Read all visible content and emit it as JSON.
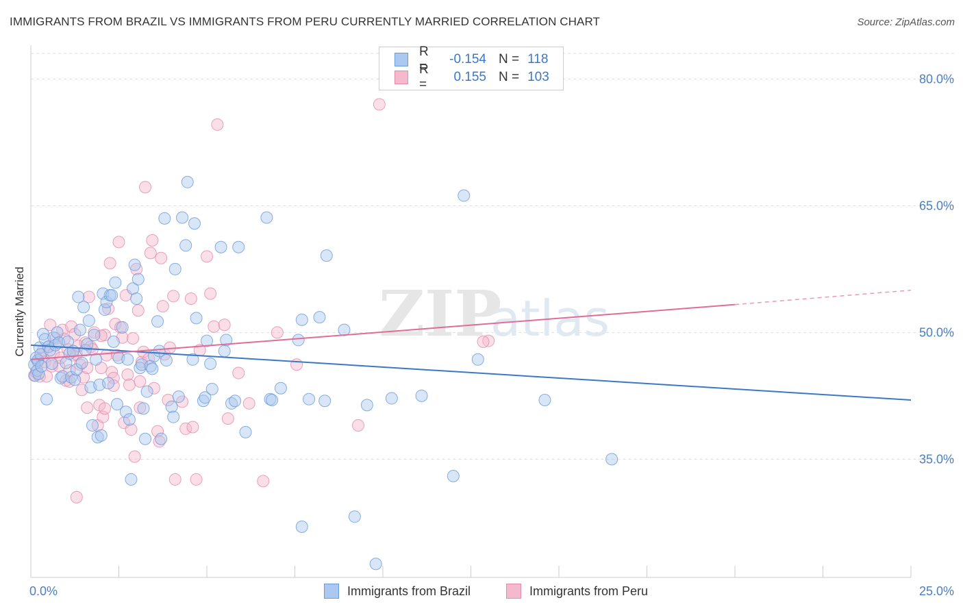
{
  "title": "IMMIGRANTS FROM BRAZIL VS IMMIGRANTS FROM PERU CURRENTLY MARRIED CORRELATION CHART",
  "source": "Source: ZipAtlas.com",
  "watermark": {
    "zip": "ZIP",
    "atlas": "atlas"
  },
  "legend_top": {
    "rows": [
      {
        "swatch_color": "#aac8f0",
        "r_label": "R =",
        "r_value": "-0.154",
        "n_label": "N =",
        "n_value": "118"
      },
      {
        "swatch_color": "#f5b9cd",
        "r_label": "R =",
        "r_value": "0.155",
        "n_label": "N =",
        "n_value": "103"
      }
    ]
  },
  "legend_bottom": {
    "items": [
      {
        "label": "Immigrants from Brazil",
        "color": "#aac8f0"
      },
      {
        "label": "Immigrants from Peru",
        "color": "#f5b9cd"
      }
    ]
  },
  "chart_data": {
    "type": "scatter",
    "ylabel": "Currently Married",
    "xlim": [
      0,
      25
    ],
    "ylim": [
      21,
      84
    ],
    "x_tick_labels": [
      "0.0%",
      "25.0%"
    ],
    "y_ticks": [
      35,
      50,
      65,
      80
    ],
    "y_tick_labels": [
      "35.0%",
      "50.0%",
      "65.0%",
      "80.0%"
    ],
    "grid": true,
    "colors": {
      "brazil": "#3a78c8",
      "peru": "#e06c98",
      "brazil_fill": "#aac8f0",
      "peru_fill": "#f5b9cd"
    },
    "series": [
      {
        "name": "Immigrants from Brazil",
        "trend": {
          "x": [
            0,
            25
          ],
          "y": [
            48.5,
            42.0
          ]
        },
        "points": [
          [
            0.1,
            46.2
          ],
          [
            0.12,
            44.9
          ],
          [
            0.15,
            47.0
          ],
          [
            0.18,
            45.5
          ],
          [
            0.2,
            46.7
          ],
          [
            0.22,
            45.1
          ],
          [
            0.25,
            48.2
          ],
          [
            0.28,
            47.4
          ],
          [
            0.3,
            46.0
          ],
          [
            0.35,
            49.8
          ],
          [
            0.4,
            49.2
          ],
          [
            0.45,
            42.1
          ],
          [
            0.5,
            48.3
          ],
          [
            0.55,
            47.9
          ],
          [
            0.6,
            46.3
          ],
          [
            0.65,
            49.4
          ],
          [
            0.7,
            48.5
          ],
          [
            0.75,
            50.0
          ],
          [
            0.8,
            48.8
          ],
          [
            0.85,
            44.6
          ],
          [
            0.9,
            44.8
          ],
          [
            1.0,
            46.4
          ],
          [
            1.05,
            48.9
          ],
          [
            1.1,
            47.5
          ],
          [
            1.15,
            44.7
          ],
          [
            1.2,
            47.8
          ],
          [
            1.25,
            44.4
          ],
          [
            1.3,
            45.6
          ],
          [
            1.35,
            54.2
          ],
          [
            1.4,
            50.3
          ],
          [
            1.45,
            46.4
          ],
          [
            1.5,
            53.0
          ],
          [
            1.55,
            47.9
          ],
          [
            1.6,
            48.6
          ],
          [
            1.65,
            51.4
          ],
          [
            1.7,
            43.5
          ],
          [
            1.75,
            39.0
          ],
          [
            1.8,
            49.7
          ],
          [
            1.85,
            46.8
          ],
          [
            1.9,
            37.6
          ],
          [
            1.95,
            43.8
          ],
          [
            2.0,
            37.8
          ],
          [
            2.05,
            54.6
          ],
          [
            2.1,
            52.7
          ],
          [
            2.15,
            53.6
          ],
          [
            2.2,
            44.0
          ],
          [
            2.25,
            54.4
          ],
          [
            2.3,
            54.4
          ],
          [
            2.35,
            48.9
          ],
          [
            2.4,
            55.9
          ],
          [
            2.45,
            41.5
          ],
          [
            2.5,
            47.0
          ],
          [
            2.6,
            50.6
          ],
          [
            2.7,
            40.6
          ],
          [
            2.75,
            46.8
          ],
          [
            2.8,
            39.7
          ],
          [
            2.85,
            32.6
          ],
          [
            2.9,
            55.2
          ],
          [
            2.95,
            58.0
          ],
          [
            3.0,
            54.0
          ],
          [
            3.05,
            56.3
          ],
          [
            3.1,
            45.8
          ],
          [
            3.15,
            46.2
          ],
          [
            3.2,
            41.0
          ],
          [
            3.25,
            37.4
          ],
          [
            3.3,
            43.0
          ],
          [
            3.4,
            46.0
          ],
          [
            3.45,
            45.7
          ],
          [
            3.5,
            47.2
          ],
          [
            3.6,
            51.3
          ],
          [
            3.65,
            47.8
          ],
          [
            3.7,
            37.4
          ],
          [
            3.8,
            63.5
          ],
          [
            3.85,
            46.7
          ],
          [
            4.0,
            41.2
          ],
          [
            4.05,
            40.0
          ],
          [
            4.1,
            57.5
          ],
          [
            4.2,
            42.4
          ],
          [
            4.3,
            63.6
          ],
          [
            4.4,
            60.3
          ],
          [
            4.45,
            67.8
          ],
          [
            4.6,
            46.8
          ],
          [
            4.65,
            62.9
          ],
          [
            4.7,
            51.7
          ],
          [
            4.9,
            41.9
          ],
          [
            4.95,
            42.3
          ],
          [
            5.0,
            49.0
          ],
          [
            5.1,
            46.3
          ],
          [
            5.15,
            43.3
          ],
          [
            5.4,
            60.1
          ],
          [
            5.5,
            47.8
          ],
          [
            5.55,
            49.1
          ],
          [
            5.7,
            41.6
          ],
          [
            5.8,
            41.9
          ],
          [
            5.9,
            60.1
          ],
          [
            6.1,
            38.2
          ],
          [
            6.7,
            63.6
          ],
          [
            6.8,
            42.1
          ],
          [
            6.85,
            42.0
          ],
          [
            7.1,
            43.4
          ],
          [
            7.6,
            49.1
          ],
          [
            7.7,
            51.5
          ],
          [
            7.9,
            42.1
          ],
          [
            8.2,
            51.8
          ],
          [
            8.35,
            41.9
          ],
          [
            8.4,
            59.1
          ],
          [
            8.9,
            50.3
          ],
          [
            9.2,
            28.2
          ],
          [
            9.55,
            41.4
          ],
          [
            9.8,
            22.6
          ],
          [
            10.25,
            42.2
          ],
          [
            11.1,
            42.5
          ],
          [
            12.0,
            33.0
          ],
          [
            12.3,
            66.2
          ],
          [
            12.7,
            46.8
          ],
          [
            14.6,
            42.0
          ],
          [
            16.5,
            35.0
          ],
          [
            7.7,
            27.0
          ]
        ]
      },
      {
        "name": "Immigrants from Peru",
        "trend": {
          "x": [
            0,
            20
          ],
          "y": [
            46.8,
            53.3
          ]
        },
        "trend_ext": {
          "x": [
            20,
            25
          ],
          "y": [
            53.3,
            55.0
          ]
        },
        "points": [
          [
            0.1,
            44.9
          ],
          [
            0.15,
            45.3
          ],
          [
            0.2,
            46.5
          ],
          [
            0.25,
            44.8
          ],
          [
            0.3,
            47.0
          ],
          [
            0.35,
            47.9
          ],
          [
            0.4,
            46.5
          ],
          [
            0.45,
            44.8
          ],
          [
            0.5,
            48.3
          ],
          [
            0.55,
            50.9
          ],
          [
            0.6,
            46.0
          ],
          [
            0.65,
            47.5
          ],
          [
            0.7,
            49.3
          ],
          [
            0.8,
            46.0
          ],
          [
            0.85,
            47.0
          ],
          [
            0.9,
            50.3
          ],
          [
            1.0,
            44.3
          ],
          [
            1.05,
            48.0
          ],
          [
            1.1,
            45.5
          ],
          [
            1.15,
            50.7
          ],
          [
            1.2,
            47.3
          ],
          [
            1.25,
            49.8
          ],
          [
            1.3,
            47.4
          ],
          [
            1.35,
            48.4
          ],
          [
            1.4,
            46.2
          ],
          [
            1.45,
            43.2
          ],
          [
            1.5,
            44.7
          ],
          [
            1.55,
            48.8
          ],
          [
            1.6,
            41.1
          ],
          [
            1.65,
            54.2
          ],
          [
            1.7,
            48.3
          ],
          [
            1.75,
            48.0
          ],
          [
            1.8,
            50.0
          ],
          [
            1.9,
            39.0
          ],
          [
            1.95,
            41.4
          ],
          [
            2.0,
            45.8
          ],
          [
            2.05,
            40.0
          ],
          [
            2.1,
            49.7
          ],
          [
            2.15,
            47.3
          ],
          [
            2.2,
            52.8
          ],
          [
            2.25,
            58.2
          ],
          [
            2.3,
            45.3
          ],
          [
            2.35,
            44.6
          ],
          [
            2.4,
            51.0
          ],
          [
            2.45,
            47.3
          ],
          [
            2.5,
            60.7
          ],
          [
            2.55,
            50.6
          ],
          [
            2.6,
            49.4
          ],
          [
            2.65,
            39.3
          ],
          [
            2.7,
            54.4
          ],
          [
            2.75,
            45.0
          ],
          [
            2.8,
            43.8
          ],
          [
            2.85,
            38.5
          ],
          [
            2.9,
            49.3
          ],
          [
            2.95,
            35.3
          ],
          [
            3.0,
            57.5
          ],
          [
            3.05,
            52.6
          ],
          [
            3.1,
            41.1
          ],
          [
            3.15,
            46.5
          ],
          [
            3.2,
            47.7
          ],
          [
            3.25,
            67.2
          ],
          [
            3.35,
            46.9
          ],
          [
            3.4,
            59.4
          ],
          [
            3.45,
            60.9
          ],
          [
            3.5,
            43.4
          ],
          [
            3.6,
            38.3
          ],
          [
            3.65,
            37.1
          ],
          [
            3.7,
            58.8
          ],
          [
            3.75,
            53.1
          ],
          [
            3.8,
            47.4
          ],
          [
            3.9,
            42.0
          ],
          [
            3.95,
            48.2
          ],
          [
            4.05,
            54.3
          ],
          [
            4.1,
            32.6
          ],
          [
            4.3,
            41.8
          ],
          [
            4.4,
            38.6
          ],
          [
            4.55,
            54.0
          ],
          [
            4.6,
            38.8
          ],
          [
            4.7,
            32.6
          ],
          [
            4.8,
            47.9
          ],
          [
            5.0,
            59.0
          ],
          [
            5.1,
            54.6
          ],
          [
            5.2,
            50.7
          ],
          [
            5.3,
            74.6
          ],
          [
            5.5,
            50.9
          ],
          [
            5.6,
            39.8
          ],
          [
            5.9,
            45.2
          ],
          [
            6.2,
            41.6
          ],
          [
            6.6,
            32.4
          ],
          [
            7.0,
            50.0
          ],
          [
            7.55,
            46.2
          ],
          [
            9.3,
            39.0
          ],
          [
            9.9,
            77.0
          ],
          [
            13.0,
            49.0
          ],
          [
            1.3,
            30.5
          ],
          [
            2.1,
            41.0
          ],
          [
            3.1,
            44.2
          ],
          [
            2.0,
            49.6
          ],
          [
            1.1,
            44.2
          ],
          [
            0.95,
            49.2
          ],
          [
            2.35,
            43.7
          ],
          [
            1.6,
            45.8
          ],
          [
            12.85,
            48.9
          ]
        ]
      }
    ]
  }
}
